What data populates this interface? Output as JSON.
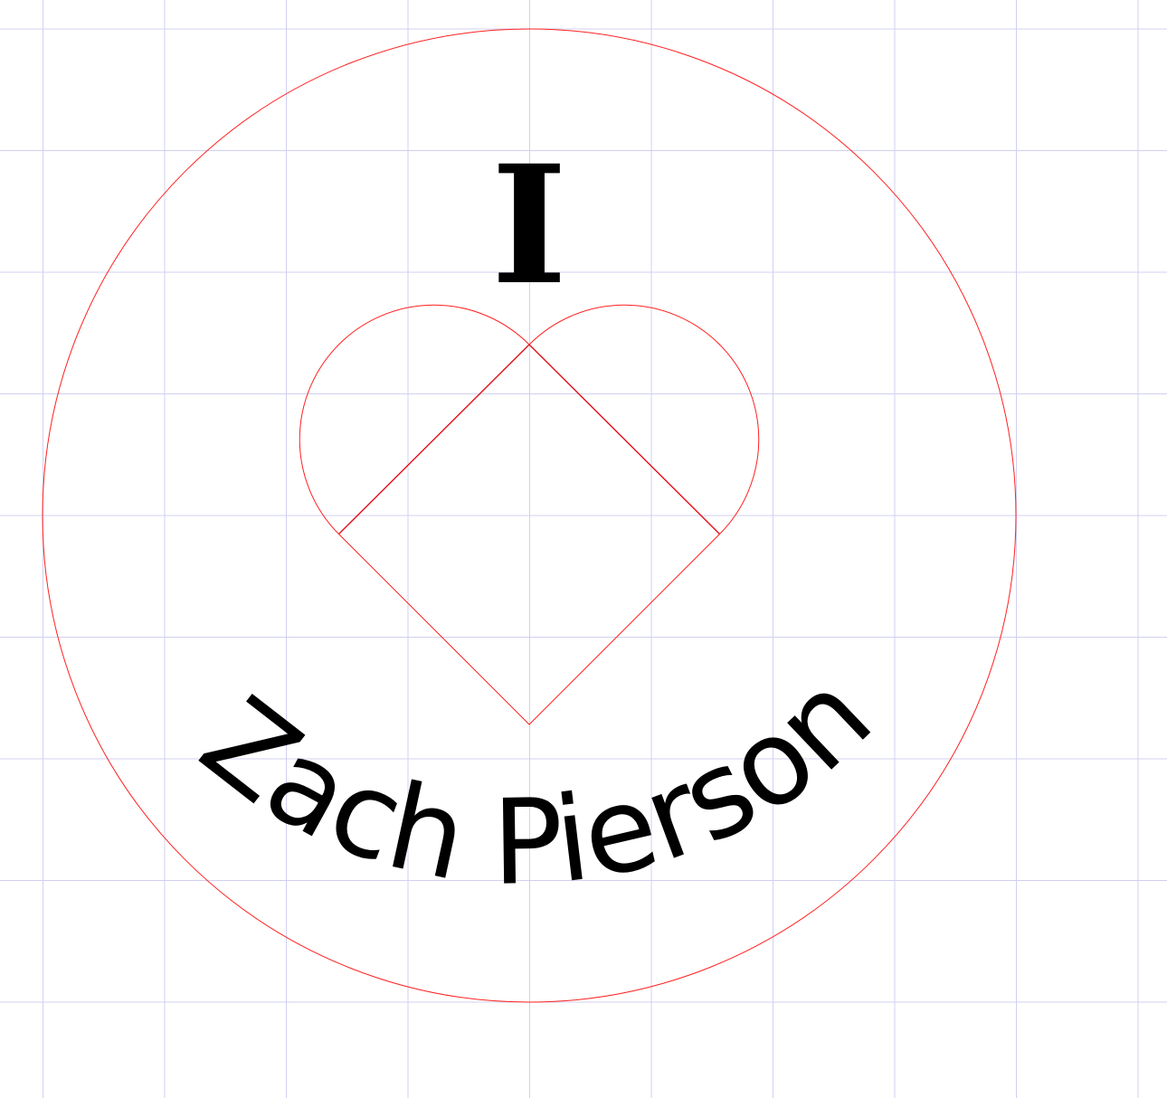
{
  "design": {
    "top_text": "I",
    "name_text": "Zach Pierson"
  },
  "colors": {
    "grid": "#d0d0f0",
    "cut_line": "#ff2020",
    "text": "#000000",
    "background": "#ffffff"
  }
}
